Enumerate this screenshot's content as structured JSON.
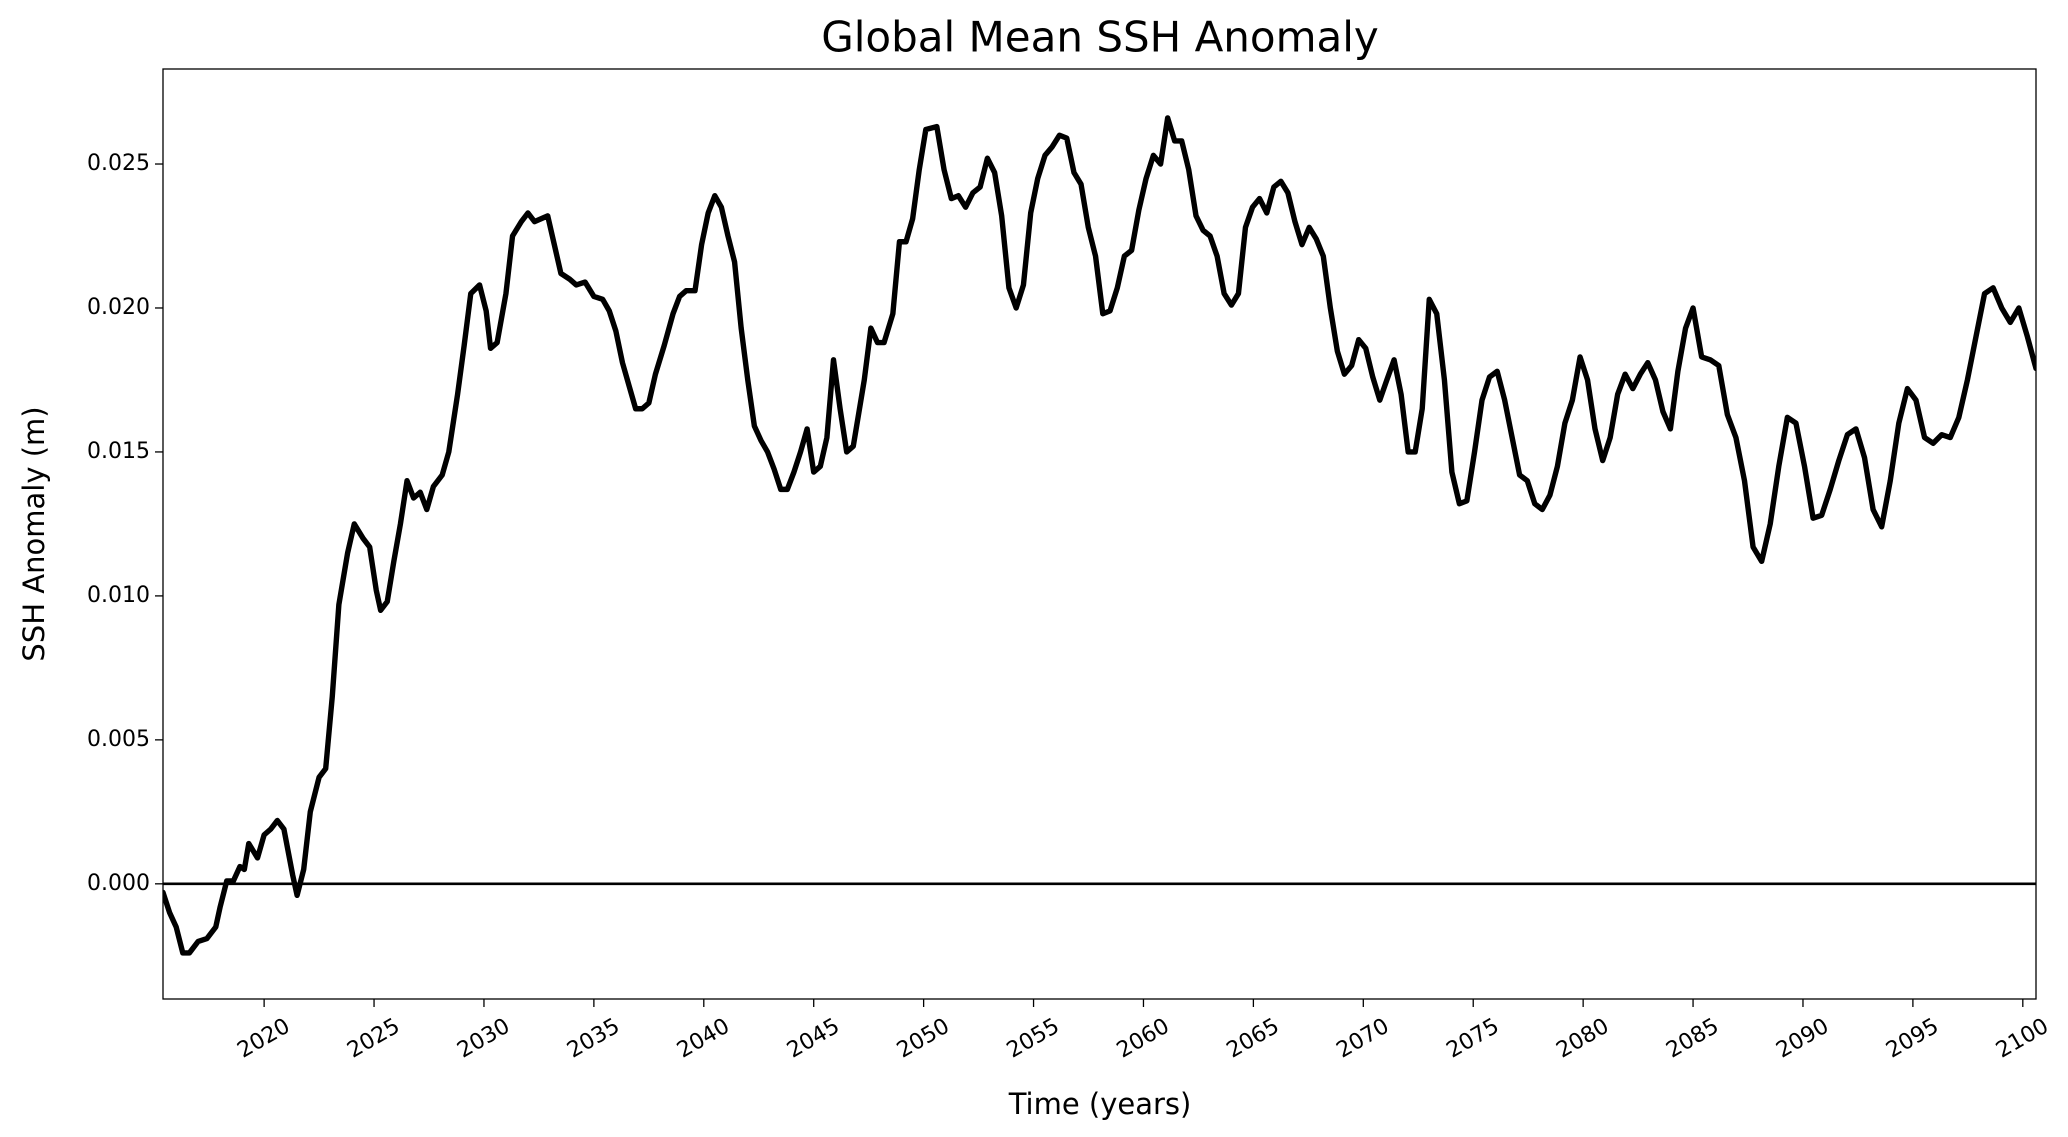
{
  "chart_data": {
    "type": "line",
    "title": "Global Mean SSH Anomaly",
    "xlabel": "Time (years)",
    "ylabel": "SSH Anomaly (m)",
    "hline": 0,
    "xlim": [
      2015.4,
      2100.6
    ],
    "ylim": [
      -0.004,
      0.0283
    ],
    "xticks": [
      2020,
      2025,
      2030,
      2035,
      2040,
      2045,
      2050,
      2055,
      2060,
      2065,
      2070,
      2075,
      2080,
      2085,
      2090,
      2095,
      2100
    ],
    "yticks": [
      {
        "value": 0,
        "label": "0.000"
      },
      {
        "value": 0.005,
        "label": "0.005"
      },
      {
        "value": 0.01,
        "label": "0.010"
      },
      {
        "value": 0.015,
        "label": "0.015"
      },
      {
        "value": 0.02,
        "label": "0.020"
      },
      {
        "value": 0.025,
        "label": "0.025"
      }
    ],
    "x": [
      2015.4,
      2015.7,
      2016.0,
      2016.3,
      2016.6,
      2017.0,
      2017.4,
      2017.8,
      2018.0,
      2018.3,
      2018.6,
      2018.9,
      2019.1,
      2019.3,
      2019.7,
      2020.0,
      2020.3,
      2020.6,
      2020.9,
      2021.3,
      2021.5,
      2021.8,
      2022.1,
      2022.5,
      2022.8,
      2023.1,
      2023.4,
      2023.8,
      2024.1,
      2024.5,
      2024.8,
      2025.1,
      2025.3,
      2025.6,
      2025.9,
      2026.2,
      2026.5,
      2026.8,
      2027.1,
      2027.4,
      2027.7,
      2028.1,
      2028.4,
      2028.8,
      2029.1,
      2029.4,
      2029.8,
      2030.1,
      2030.3,
      2030.6,
      2031.0,
      2031.3,
      2031.7,
      2032.0,
      2032.3,
      2032.6,
      2032.9,
      2033.2,
      2033.5,
      2033.9,
      2034.2,
      2034.6,
      2035.0,
      2035.4,
      2035.7,
      2036.0,
      2036.3,
      2036.6,
      2036.9,
      2037.2,
      2037.5,
      2037.8,
      2038.2,
      2038.6,
      2038.9,
      2039.2,
      2039.6,
      2039.9,
      2040.2,
      2040.5,
      2040.8,
      2041.1,
      2041.4,
      2041.7,
      2042.0,
      2042.3,
      2042.6,
      2042.9,
      2043.2,
      2043.5,
      2043.8,
      2044.1,
      2044.4,
      2044.7,
      2045.0,
      2045.3,
      2045.6,
      2045.9,
      2046.2,
      2046.5,
      2046.8,
      2047.3,
      2047.6,
      2047.9,
      2048.2,
      2048.6,
      2048.9,
      2049.2,
      2049.5,
      2049.8,
      2050.1,
      2050.6,
      2050.93,
      2051.26,
      2051.58,
      2051.91,
      2052.24,
      2052.57,
      2052.9,
      2053.23,
      2053.55,
      2053.88,
      2054.21,
      2054.54,
      2054.87,
      2055.19,
      2055.52,
      2055.85,
      2056.18,
      2056.51,
      2056.84,
      2057.16,
      2057.49,
      2057.82,
      2058.15,
      2058.48,
      2058.81,
      2059.13,
      2059.46,
      2059.79,
      2060.12,
      2060.45,
      2060.78,
      2061.1,
      2061.42,
      2061.74,
      2062.06,
      2062.39,
      2062.71,
      2063.03,
      2063.35,
      2063.67,
      2064.0,
      2064.32,
      2064.64,
      2064.96,
      2065.28,
      2065.61,
      2065.93,
      2066.25,
      2066.57,
      2066.89,
      2067.21,
      2067.54,
      2067.86,
      2068.18,
      2068.5,
      2068.82,
      2069.14,
      2069.47,
      2069.79,
      2070.11,
      2070.43,
      2070.75,
      2071.07,
      2071.4,
      2071.72,
      2072.04,
      2072.36,
      2072.68,
      2073.0,
      2073.34,
      2073.69,
      2074.03,
      2074.37,
      2074.71,
      2075.06,
      2075.4,
      2075.74,
      2076.09,
      2076.43,
      2076.77,
      2077.11,
      2077.46,
      2077.8,
      2078.14,
      2078.49,
      2078.83,
      2079.17,
      2079.51,
      2079.86,
      2080.2,
      2080.54,
      2080.89,
      2081.23,
      2081.57,
      2081.91,
      2082.26,
      2082.6,
      2082.94,
      2083.29,
      2083.63,
      2083.97,
      2084.31,
      2084.66,
      2085.0,
      2085.39,
      2085.78,
      2086.17,
      2086.56,
      2086.95,
      2087.34,
      2087.73,
      2088.12,
      2088.51,
      2088.9,
      2089.29,
      2089.68,
      2090.07,
      2090.46,
      2090.85,
      2091.24,
      2091.63,
      2092.02,
      2092.41,
      2092.8,
      2093.19,
      2093.58,
      2093.97,
      2094.36,
      2094.75,
      2095.14,
      2095.53,
      2095.92,
      2096.31,
      2096.7,
      2097.09,
      2097.48,
      2097.87,
      2098.26,
      2098.65,
      2099.04,
      2099.43,
      2099.82,
      2100.21,
      2100.6
    ],
    "series": [
      {
        "color": "#000000",
        "values": [
          -0.0003,
          -0.001,
          -0.0015,
          -0.0024,
          -0.0024,
          -0.002,
          -0.0019,
          -0.0015,
          -0.0008,
          0.0001,
          0.0001,
          0.0006,
          0.0005,
          0.0014,
          0.0009,
          0.0017,
          0.0019,
          0.0022,
          0.0019,
          0.0003,
          -0.0004,
          0.0005,
          0.0025,
          0.0037,
          0.004,
          0.0065,
          0.0097,
          0.0115,
          0.0125,
          0.012,
          0.0117,
          0.0102,
          0.0095,
          0.0098,
          0.0112,
          0.0125,
          0.014,
          0.0134,
          0.0136,
          0.013,
          0.0138,
          0.0142,
          0.015,
          0.017,
          0.0187,
          0.0205,
          0.0208,
          0.0199,
          0.0186,
          0.0188,
          0.0205,
          0.0225,
          0.023,
          0.0233,
          0.023,
          0.0231,
          0.0232,
          0.0222,
          0.0212,
          0.021,
          0.0208,
          0.0209,
          0.0204,
          0.0203,
          0.0199,
          0.0192,
          0.0181,
          0.0173,
          0.0165,
          0.0165,
          0.0167,
          0.0177,
          0.0187,
          0.0198,
          0.0204,
          0.0206,
          0.0206,
          0.0222,
          0.0233,
          0.0239,
          0.0235,
          0.0225,
          0.0216,
          0.0193,
          0.0175,
          0.0159,
          0.0154,
          0.015,
          0.0144,
          0.0137,
          0.0137,
          0.0143,
          0.015,
          0.0158,
          0.0143,
          0.0145,
          0.0155,
          0.0182,
          0.0165,
          0.015,
          0.0152,
          0.0175,
          0.0193,
          0.0188,
          0.0188,
          0.0198,
          0.0223,
          0.0223,
          0.0231,
          0.0248,
          0.0262,
          0.0263,
          0.0248,
          0.0238,
          0.0239,
          0.0235,
          0.024,
          0.0242,
          0.0252,
          0.0247,
          0.0232,
          0.0207,
          0.02,
          0.0208,
          0.0233,
          0.0245,
          0.0253,
          0.0256,
          0.026,
          0.0259,
          0.0247,
          0.0243,
          0.0228,
          0.0218,
          0.0198,
          0.0199,
          0.0207,
          0.0218,
          0.022,
          0.0234,
          0.0245,
          0.0253,
          0.025,
          0.0266,
          0.0258,
          0.0258,
          0.0248,
          0.0232,
          0.0227,
          0.0225,
          0.0218,
          0.0205,
          0.0201,
          0.0205,
          0.0228,
          0.0235,
          0.0238,
          0.0233,
          0.0242,
          0.0244,
          0.024,
          0.023,
          0.0222,
          0.0228,
          0.0224,
          0.0218,
          0.02,
          0.0185,
          0.0177,
          0.018,
          0.0189,
          0.0186,
          0.0176,
          0.0168,
          0.0175,
          0.0182,
          0.017,
          0.015,
          0.015,
          0.0165,
          0.0203,
          0.0198,
          0.0175,
          0.0143,
          0.0132,
          0.0133,
          0.015,
          0.0168,
          0.0176,
          0.0178,
          0.0168,
          0.0155,
          0.0142,
          0.014,
          0.0132,
          0.013,
          0.0135,
          0.0145,
          0.016,
          0.0168,
          0.0183,
          0.0175,
          0.0158,
          0.0147,
          0.0155,
          0.017,
          0.0177,
          0.0172,
          0.0177,
          0.0181,
          0.0175,
          0.0164,
          0.0158,
          0.0178,
          0.0193,
          0.02,
          0.0183,
          0.0182,
          0.018,
          0.0163,
          0.0155,
          0.014,
          0.0117,
          0.0112,
          0.0125,
          0.0145,
          0.0162,
          0.016,
          0.0145,
          0.0127,
          0.0128,
          0.0137,
          0.0147,
          0.0156,
          0.0158,
          0.0148,
          0.013,
          0.0124,
          0.014,
          0.016,
          0.0172,
          0.0168,
          0.0155,
          0.0153,
          0.0156,
          0.0155,
          0.0162,
          0.0175,
          0.019,
          0.0205,
          0.0207,
          0.02,
          0.0195,
          0.02,
          0.019,
          0.0179
        ]
      }
    ]
  }
}
